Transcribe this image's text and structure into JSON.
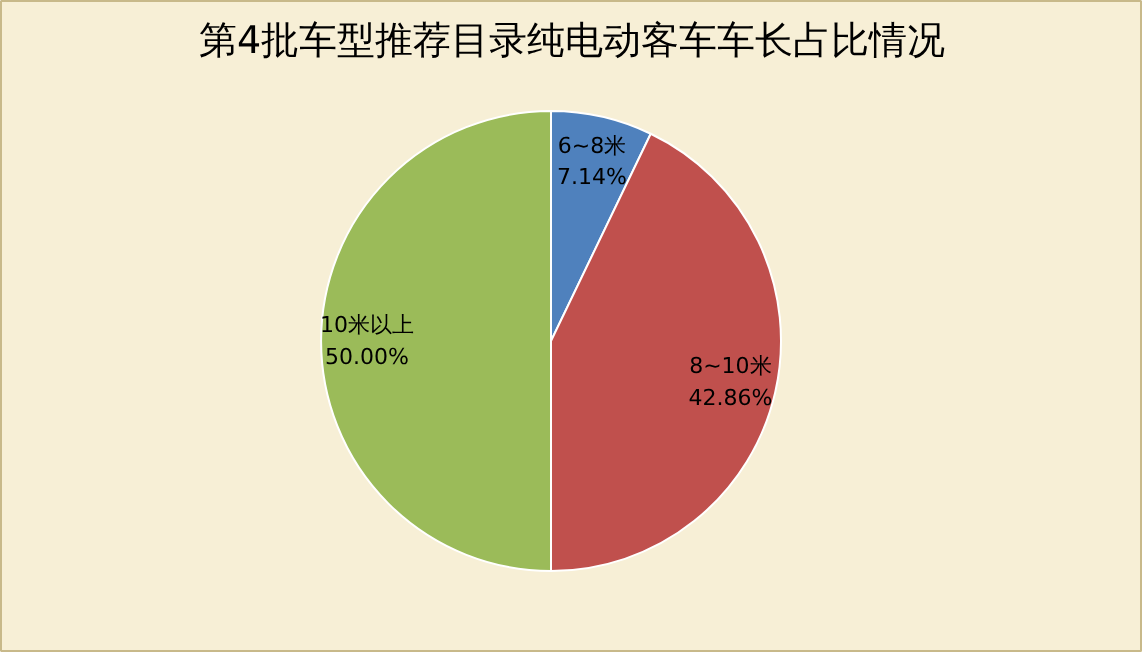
{
  "chart_data": {
    "type": "pie",
    "title": "第4批车型推荐目录纯电动客车车长占比情况",
    "categories": [
      "6~8米",
      "8~10米",
      "10米以上"
    ],
    "values": [
      7.14,
      42.86,
      50.0
    ],
    "value_labels": [
      "7.14%",
      "42.86%",
      "50.00%"
    ],
    "colors": [
      "#4f81bd",
      "#c0504d",
      "#9bbb59"
    ]
  }
}
